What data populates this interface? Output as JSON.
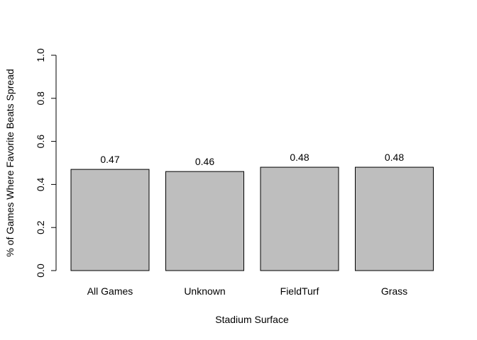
{
  "chart_data": {
    "type": "bar",
    "categories": [
      "All Games",
      "Unknown",
      "FieldTurf",
      "Grass"
    ],
    "values": [
      0.47,
      0.46,
      0.48,
      0.48
    ],
    "data_labels": [
      "0.47",
      "0.46",
      "0.48",
      "0.48"
    ],
    "xlabel": "Stadium Surface",
    "ylabel": "% of Games Where Favorite Beats Spread",
    "ylim": [
      0,
      1
    ],
    "yticks": [
      "0.0",
      "0.2",
      "0.4",
      "0.6",
      "0.8",
      "1.0"
    ],
    "grid": false,
    "bar_color": "#bebebe",
    "bar_edge_color": "#000000"
  }
}
